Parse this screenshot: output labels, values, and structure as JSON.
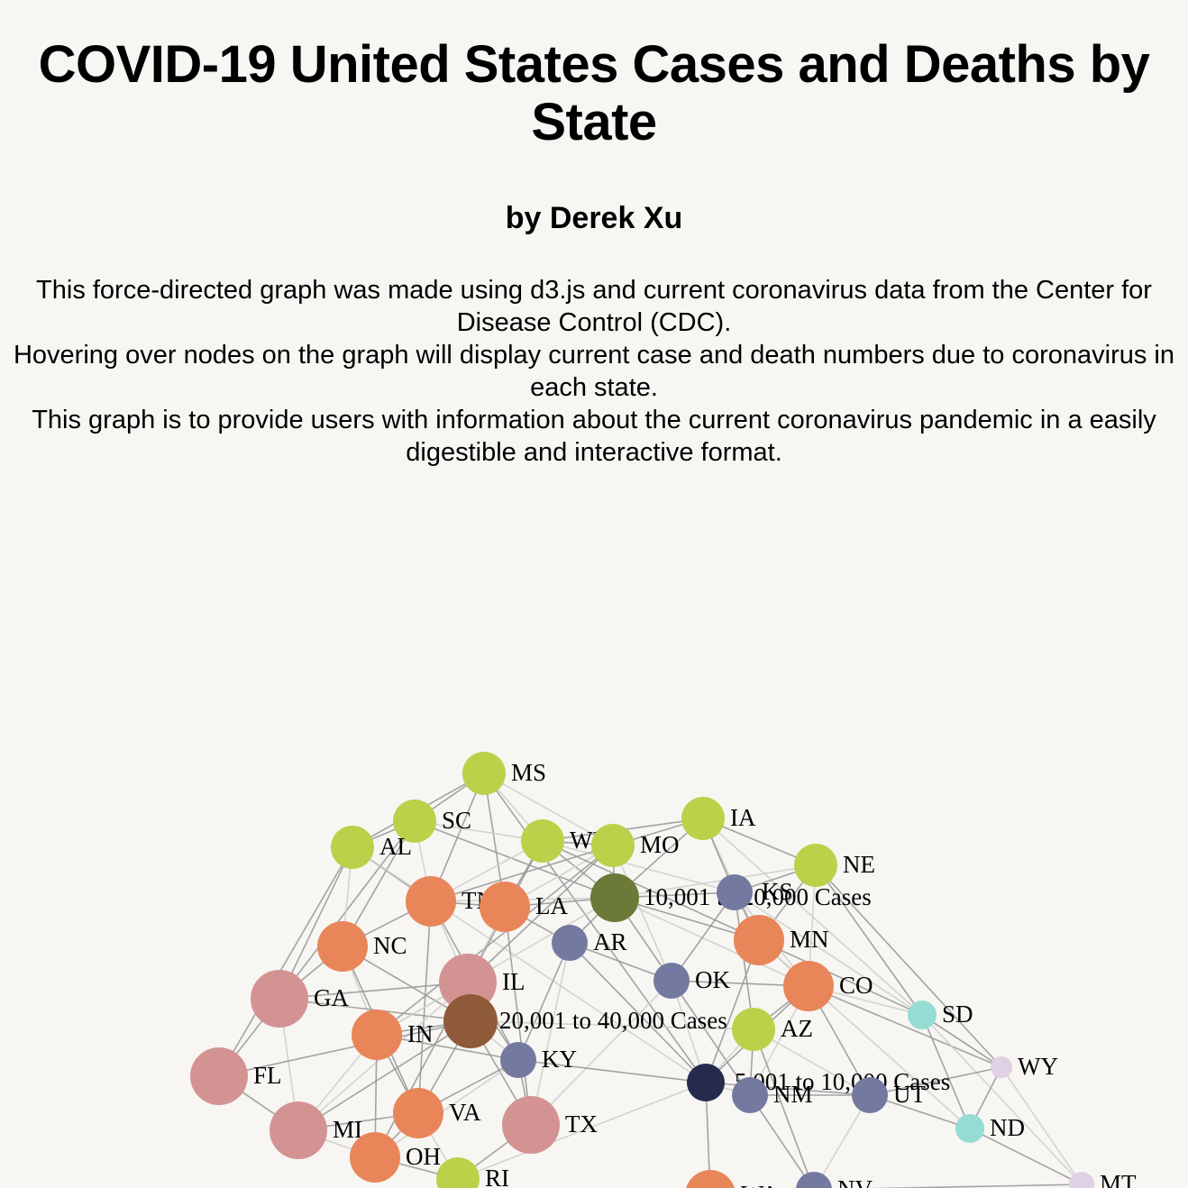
{
  "title": "COVID-19 United States Cases and Deaths by State",
  "byline": "by Derek Xu",
  "description": [
    "This force-directed graph was made using d3.js and current coronavirus data from the Center for Disease Control (CDC).",
    "Hovering over nodes on the graph will display current case and death numbers due to coronavirus in each state.",
    "This graph is to provide users with information about the current coronavirus pandemic in a easily digestible and interactive format."
  ],
  "graph": {
    "colors": {
      "over_40000": "#d49393",
      "20001_to_40000": "#8f5a3a",
      "10001_to_20000": "#e8865a",
      "5001_to_10000": "#b9d24a",
      "mid_low": "#7479a0",
      "low": "#95ddd4",
      "lowest": "#e0d0e6",
      "hub_10001_20000": "#6b7a38",
      "hub_5001_10000": "#262b4e",
      "edge_dark": "#9a9a9a",
      "edge_light": "#cfcfcb"
    },
    "nodes": [
      {
        "id": "MS",
        "label": "MS",
        "group": "5001_to_10000"
      },
      {
        "id": "SC",
        "label": "SC",
        "group": "5001_to_10000"
      },
      {
        "id": "AL",
        "label": "AL",
        "group": "5001_to_10000"
      },
      {
        "id": "WI",
        "label": "WI",
        "group": "5001_to_10000"
      },
      {
        "id": "MO",
        "label": "MO",
        "group": "5001_to_10000"
      },
      {
        "id": "IA",
        "label": "IA",
        "group": "5001_to_10000"
      },
      {
        "id": "NE",
        "label": "NE",
        "group": "5001_to_10000"
      },
      {
        "id": "TN",
        "label": "TN",
        "group": "10001_to_20000"
      },
      {
        "id": "LA",
        "label": "LA",
        "group": "10001_to_20000"
      },
      {
        "id": "HUB2",
        "label": "10,001 to 20,000 Cases",
        "group": "hub_10001_20000"
      },
      {
        "id": "KS",
        "label": "KS",
        "group": "mid_low"
      },
      {
        "id": "NC",
        "label": "NC",
        "group": "10001_to_20000"
      },
      {
        "id": "AR",
        "label": "AR",
        "group": "mid_low"
      },
      {
        "id": "MN",
        "label": "MN",
        "group": "10001_to_20000"
      },
      {
        "id": "GA",
        "label": "GA",
        "group": "over_40000"
      },
      {
        "id": "IL",
        "label": "IL",
        "group": "over_40000"
      },
      {
        "id": "OK",
        "label": "OK",
        "group": "mid_low"
      },
      {
        "id": "CO",
        "label": "CO",
        "group": "10001_to_20000"
      },
      {
        "id": "SD",
        "label": "SD",
        "group": "low"
      },
      {
        "id": "IN",
        "label": "IN",
        "group": "10001_to_20000"
      },
      {
        "id": "HUB1",
        "label": "20,001 to 40,000 Cases",
        "group": "20001_to_40000"
      },
      {
        "id": "AZ",
        "label": "AZ",
        "group": "5001_to_10000"
      },
      {
        "id": "FL",
        "label": "FL",
        "group": "over_40000"
      },
      {
        "id": "KY",
        "label": "KY",
        "group": "mid_low"
      },
      {
        "id": "WY",
        "label": "WY",
        "group": "lowest"
      },
      {
        "id": "HUB3",
        "label": "5,001 to 10,000 Cases",
        "group": "hub_5001_10000"
      },
      {
        "id": "NM",
        "label": "NM",
        "group": "mid_low"
      },
      {
        "id": "UT",
        "label": "UT",
        "group": "mid_low"
      },
      {
        "id": "ND",
        "label": "ND",
        "group": "low"
      },
      {
        "id": "MI",
        "label": "MI",
        "group": "over_40000"
      },
      {
        "id": "VA",
        "label": "VA",
        "group": "10001_to_20000"
      },
      {
        "id": "TX",
        "label": "TX",
        "group": "over_40000"
      },
      {
        "id": "OH",
        "label": "OH",
        "group": "10001_to_20000"
      },
      {
        "id": "RI",
        "label": "RI",
        "group": "5001_to_10000"
      },
      {
        "id": "WA",
        "label": "WA",
        "group": "10001_to_20000"
      },
      {
        "id": "NV",
        "label": "NV",
        "group": "mid_low"
      },
      {
        "id": "MT",
        "label": "MT",
        "group": "lowest"
      }
    ],
    "links": [
      [
        "MS",
        "SC"
      ],
      [
        "MS",
        "AL"
      ],
      [
        "MS",
        "WI"
      ],
      [
        "MS",
        "TN"
      ],
      [
        "MS",
        "LA"
      ],
      [
        "MS",
        "MO"
      ],
      [
        "MS",
        "HUB3"
      ],
      [
        "SC",
        "AL"
      ],
      [
        "SC",
        "TN"
      ],
      [
        "SC",
        "GA"
      ],
      [
        "SC",
        "NC"
      ],
      [
        "SC",
        "WI"
      ],
      [
        "SC",
        "HUB2"
      ],
      [
        "AL",
        "GA"
      ],
      [
        "AL",
        "NC"
      ],
      [
        "AL",
        "FL"
      ],
      [
        "AL",
        "TN"
      ],
      [
        "AL",
        "HUB3"
      ],
      [
        "WI",
        "MO"
      ],
      [
        "WI",
        "IA"
      ],
      [
        "WI",
        "TN"
      ],
      [
        "WI",
        "LA"
      ],
      [
        "WI",
        "HUB2"
      ],
      [
        "WI",
        "KS"
      ],
      [
        "MO",
        "IA"
      ],
      [
        "MO",
        "TN"
      ],
      [
        "MO",
        "LA"
      ],
      [
        "MO",
        "IL"
      ],
      [
        "MO",
        "IN"
      ],
      [
        "MO",
        "OK"
      ],
      [
        "MO",
        "HUB2"
      ],
      [
        "IA",
        "NE"
      ],
      [
        "IA",
        "MN"
      ],
      [
        "IA",
        "KS"
      ],
      [
        "IA",
        "HUB2"
      ],
      [
        "IA",
        "SD"
      ],
      [
        "NE",
        "KS"
      ],
      [
        "NE",
        "MN"
      ],
      [
        "NE",
        "CO"
      ],
      [
        "NE",
        "WY"
      ],
      [
        "NE",
        "SD"
      ],
      [
        "NE",
        "HUB2"
      ],
      [
        "TN",
        "LA"
      ],
      [
        "TN",
        "NC"
      ],
      [
        "TN",
        "IL"
      ],
      [
        "TN",
        "KY"
      ],
      [
        "TN",
        "VA"
      ],
      [
        "TN",
        "HUB2"
      ],
      [
        "LA",
        "AR"
      ],
      [
        "LA",
        "TX"
      ],
      [
        "LA",
        "IL"
      ],
      [
        "LA",
        "HUB2"
      ],
      [
        "HUB2",
        "MN"
      ],
      [
        "HUB2",
        "CO"
      ],
      [
        "HUB2",
        "KS"
      ],
      [
        "HUB2",
        "AR"
      ],
      [
        "HUB2",
        "IN"
      ],
      [
        "HUB2",
        "OK"
      ],
      [
        "KS",
        "OK"
      ],
      [
        "KS",
        "CO"
      ],
      [
        "KS",
        "MN"
      ],
      [
        "KS",
        "AZ"
      ],
      [
        "KS",
        "WY"
      ],
      [
        "NC",
        "GA"
      ],
      [
        "NC",
        "VA"
      ],
      [
        "NC",
        "IN"
      ],
      [
        "NC",
        "HUB1"
      ],
      [
        "AR",
        "OK"
      ],
      [
        "AR",
        "TX"
      ],
      [
        "AR",
        "KY"
      ],
      [
        "AR",
        "HUB3"
      ],
      [
        "MN",
        "CO"
      ],
      [
        "MN",
        "WI"
      ],
      [
        "MN",
        "SD"
      ],
      [
        "MN",
        "ND"
      ],
      [
        "MN",
        "HUB3"
      ],
      [
        "GA",
        "FL"
      ],
      [
        "GA",
        "MI"
      ],
      [
        "GA",
        "HUB1"
      ],
      [
        "GA",
        "IL"
      ],
      [
        "IL",
        "IN"
      ],
      [
        "IL",
        "HUB1"
      ],
      [
        "IL",
        "KY"
      ],
      [
        "IL",
        "MI"
      ],
      [
        "IL",
        "WI"
      ],
      [
        "IL",
        "OH"
      ],
      [
        "OK",
        "TX"
      ],
      [
        "OK",
        "CO"
      ],
      [
        "OK",
        "NM"
      ],
      [
        "OK",
        "HUB3"
      ],
      [
        "CO",
        "AZ"
      ],
      [
        "CO",
        "UT"
      ],
      [
        "CO",
        "NM"
      ],
      [
        "CO",
        "WY"
      ],
      [
        "CO",
        "HUB3"
      ],
      [
        "CO",
        "SD"
      ],
      [
        "SD",
        "WY"
      ],
      [
        "SD",
        "ND"
      ],
      [
        "SD",
        "MT"
      ],
      [
        "IN",
        "OH"
      ],
      [
        "IN",
        "KY"
      ],
      [
        "IN",
        "MI"
      ],
      [
        "IN",
        "VA"
      ],
      [
        "IN",
        "HUB1"
      ],
      [
        "HUB1",
        "KY"
      ],
      [
        "HUB1",
        "VA"
      ],
      [
        "HUB1",
        "TX"
      ],
      [
        "HUB1",
        "AZ"
      ],
      [
        "HUB1",
        "FL"
      ],
      [
        "HUB1",
        "MI"
      ],
      [
        "AZ",
        "UT"
      ],
      [
        "AZ",
        "NM"
      ],
      [
        "AZ",
        "NV"
      ],
      [
        "AZ",
        "HUB3"
      ],
      [
        "FL",
        "MI"
      ],
      [
        "KY",
        "VA"
      ],
      [
        "KY",
        "OH"
      ],
      [
        "KY",
        "HUB3"
      ],
      [
        "KY",
        "TX"
      ],
      [
        "WY",
        "MT"
      ],
      [
        "WY",
        "ND"
      ],
      [
        "WY",
        "UT"
      ],
      [
        "HUB3",
        "NM"
      ],
      [
        "HUB3",
        "UT"
      ],
      [
        "HUB3",
        "WA"
      ],
      [
        "HUB3",
        "RI"
      ],
      [
        "NM",
        "UT"
      ],
      [
        "NM",
        "NV"
      ],
      [
        "UT",
        "NV"
      ],
      [
        "UT",
        "ND"
      ],
      [
        "ND",
        "MT"
      ],
      [
        "MI",
        "OH"
      ],
      [
        "MI",
        "VA"
      ],
      [
        "VA",
        "OH"
      ],
      [
        "VA",
        "RI"
      ],
      [
        "TX",
        "RI"
      ],
      [
        "OH",
        "RI"
      ],
      [
        "WA",
        "NV"
      ],
      [
        "NV",
        "MT"
      ]
    ]
  }
}
